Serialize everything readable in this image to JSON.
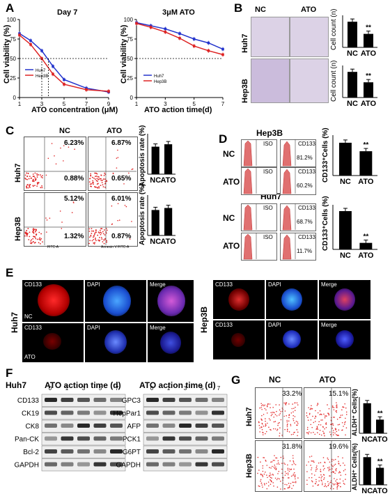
{
  "panels": {
    "A": "A",
    "B": "B",
    "C": "C",
    "D": "D",
    "E": "E",
    "F": "F",
    "G": "G"
  },
  "panelA": {
    "left_title": "Day 7",
    "right_title": "3μM ATO",
    "left_xlabel": "ATO concentration (μM)",
    "right_xlabel": "ATO action time(d)",
    "ylabel": "Cell viability (%)",
    "legend": [
      "Huh7",
      "Hep3B"
    ],
    "y_ticks": [
      "0",
      "25",
      "50",
      "75",
      "100"
    ],
    "left_x_ticks": [
      "1",
      "3",
      "5",
      "7",
      "9"
    ],
    "right_x_ticks": [
      "1",
      "3",
      "5",
      "7"
    ]
  },
  "panelB": {
    "cols": [
      "NC",
      "ATO"
    ],
    "rows": [
      "Huh7",
      "Hep3B"
    ],
    "ylabel": "Cell count (n)",
    "sig": "**"
  },
  "panelC": {
    "cols": [
      "NC",
      "ATO"
    ],
    "rows": [
      "Huh7",
      "Hep3B"
    ],
    "ylabel": "Apoptosis rate (%)",
    "pcts": {
      "huh7_nc_top": "6.23%",
      "huh7_nc_bot": "0.88%",
      "huh7_ato_top": "6.87%",
      "huh7_ato_bot": "0.65%",
      "hep3b_nc_top": "5.12%",
      "hep3b_nc_bot": "1.32%",
      "hep3b_ato_top": "6.01%",
      "hep3b_ato_bot": "0.87%"
    },
    "x_axis": "FITC-A",
    "x_axis2": "Annexin V FITC-A"
  },
  "panelD": {
    "top_title": "Hep3B",
    "bottom_title": "Huh7",
    "rows": [
      "NC",
      "ATO"
    ],
    "iso": "ISO",
    "cd133": "CD133",
    "pcts": {
      "hep3b_nc": "81.2%",
      "hep3b_ato": "60.2%",
      "huh7_nc": "68.7%",
      "huh7_ato": "11.7%"
    },
    "ylabel": "CD133⁺Cells (%)",
    "sig": "**"
  },
  "panelE": {
    "rows": [
      "Huh7",
      "Hep3B"
    ],
    "labels": [
      "CD133",
      "DAPI",
      "Merge"
    ],
    "nc": "NC",
    "ato": "ATO"
  },
  "panelF": {
    "title_left": "Huh7",
    "time_title": "ATO action time (d)",
    "time_points": [
      "0",
      "1",
      "3",
      "5",
      "7"
    ],
    "left_proteins": [
      "CD133",
      "CK19",
      "CK8",
      "Pan-CK",
      "Bcl-2",
      "GAPDH"
    ],
    "right_proteins": [
      "GPC3",
      "HepPar1",
      "AFP",
      "PCK1",
      "G6PT",
      "GAPDH"
    ]
  },
  "panelG": {
    "cols": [
      "NC",
      "ATO"
    ],
    "rows": [
      "Huh7",
      "Hep3B"
    ],
    "pcts": {
      "huh7_nc": "33.2%",
      "huh7_ato": "15.1%",
      "hep3b_nc": "31.8%",
      "hep3b_ato": "19.6%"
    },
    "ylabel": "ALDH⁺ Cells(%)",
    "sig": "**"
  },
  "chart_data": [
    {
      "type": "line",
      "title": "Day 7",
      "xlabel": "ATO concentration (μM)",
      "ylabel": "Cell viability (%)",
      "x": [
        1,
        2,
        3,
        4,
        5,
        7,
        9
      ],
      "ylim": [
        0,
        100
      ],
      "series": [
        {
          "name": "Huh7",
          "values": [
            82,
            73,
            60,
            40,
            23,
            12,
            7
          ],
          "color": "#2233cc"
        },
        {
          "name": "Hep3B",
          "values": [
            80,
            68,
            50,
            30,
            17,
            10,
            8
          ],
          "color": "#dd2222"
        }
      ],
      "reference_line": 50
    },
    {
      "type": "line",
      "title": "3μM ATO",
      "xlabel": "ATO action time(d)",
      "ylabel": "Cell viability (%)",
      "x": [
        1,
        2,
        3,
        4,
        5,
        6,
        7
      ],
      "ylim": [
        0,
        100
      ],
      "series": [
        {
          "name": "Huh7",
          "values": [
            96,
            92,
            88,
            82,
            75,
            70,
            62
          ],
          "color": "#2233cc"
        },
        {
          "name": "Hep3B",
          "values": [
            95,
            90,
            84,
            76,
            66,
            60,
            55
          ],
          "color": "#dd2222"
        }
      ],
      "reference_line": 50
    },
    {
      "type": "bar",
      "categories": [
        "NC",
        "ATO"
      ],
      "values": [
        190,
        100
      ],
      "ylabel": "Cell count (n)",
      "series_name": "Huh7"
    },
    {
      "type": "bar",
      "categories": [
        "NC",
        "ATO"
      ],
      "values": [
        160,
        95
      ],
      "ylabel": "Cell count (n)",
      "series_name": "Hep3B"
    },
    {
      "type": "bar",
      "categories": [
        "NC",
        "ATO"
      ],
      "values": [
        6.8,
        7.4
      ],
      "ylabel": "Apoptosis rate (%)",
      "series_name": "Huh7"
    },
    {
      "type": "bar",
      "categories": [
        "NC",
        "ATO"
      ],
      "values": [
        6.3,
        6.8
      ],
      "ylabel": "Apoptosis rate (%)",
      "series_name": "Hep3B"
    },
    {
      "type": "bar",
      "categories": [
        "NC",
        "ATO"
      ],
      "values": [
        81.2,
        60.2
      ],
      "ylabel": "CD133⁺Cells (%)",
      "series_name": "Hep3B"
    },
    {
      "type": "bar",
      "categories": [
        "NC",
        "ATO"
      ],
      "values": [
        68.7,
        11.7
      ],
      "ylabel": "CD133⁺Cells (%)",
      "series_name": "Huh7"
    },
    {
      "type": "bar",
      "categories": [
        "NC",
        "ATO"
      ],
      "values": [
        33.2,
        15.1
      ],
      "ylabel": "ALDH⁺ Cells(%)",
      "series_name": "Huh7"
    },
    {
      "type": "bar",
      "categories": [
        "NC",
        "ATO"
      ],
      "values": [
        31.8,
        19.6
      ],
      "ylabel": "ALDH⁺ Cells(%)",
      "series_name": "Hep3B"
    }
  ]
}
